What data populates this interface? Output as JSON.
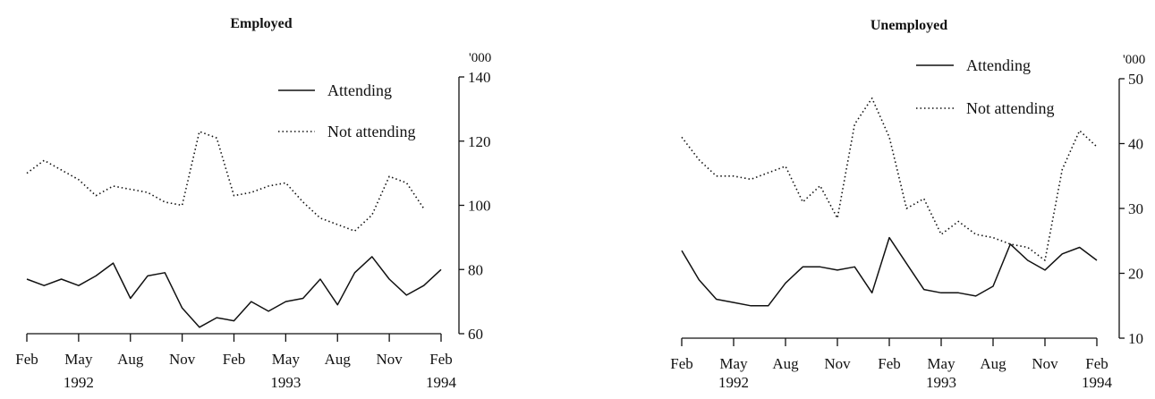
{
  "chart_data": [
    {
      "type": "line",
      "title": "Employed",
      "y_unit": "'000",
      "ylim": [
        60,
        140
      ],
      "y_ticks": [
        "60",
        "80",
        "100",
        "120",
        "140"
      ],
      "x_ticks": [
        "Feb",
        "May",
        "Aug",
        "Nov",
        "Feb",
        "May",
        "Aug",
        "Nov",
        "Feb"
      ],
      "year_labels": [
        "1992",
        "1993",
        "1994"
      ],
      "legend_position": "top-right",
      "legend": [
        "Attending",
        "Not attending"
      ],
      "x": [
        "Feb 1992",
        "Mar 1992",
        "Apr 1992",
        "May 1992",
        "Jun 1992",
        "Jul 1992",
        "Aug 1992",
        "Sep 1992",
        "Oct 1992",
        "Nov 1992",
        "Dec 1992",
        "Jan 1993",
        "Feb 1993",
        "Mar 1993",
        "Apr 1993",
        "May 1993",
        "Jun 1993",
        "Jul 1993",
        "Aug 1993",
        "Sep 1993",
        "Oct 1993",
        "Nov 1993",
        "Dec 1993",
        "Jan 1994",
        "Feb 1994"
      ],
      "series": [
        {
          "name": "Attending",
          "style": "solid",
          "values": [
            77,
            75,
            77,
            75,
            78,
            82,
            71,
            78,
            79,
            68,
            62,
            65,
            64,
            70,
            67,
            70,
            71,
            77,
            69,
            79,
            84,
            77,
            72,
            75,
            80
          ]
        },
        {
          "name": "Not attending",
          "style": "dotted",
          "values": [
            110,
            114,
            111,
            108,
            103,
            106,
            105,
            104,
            101,
            100,
            123,
            121,
            103,
            104,
            106,
            107,
            101,
            96,
            94,
            92,
            97,
            109,
            107,
            99,
            null
          ]
        }
      ]
    },
    {
      "type": "line",
      "title": "Unemployed",
      "y_unit": "'000",
      "ylim": [
        10,
        50
      ],
      "y_ticks": [
        "10",
        "20",
        "30",
        "40",
        "50"
      ],
      "x_ticks": [
        "Feb",
        "May",
        "Aug",
        "Nov",
        "Feb",
        "May",
        "Aug",
        "Nov",
        "Feb"
      ],
      "year_labels": [
        "1992",
        "1993",
        "1994"
      ],
      "legend_position": "top-right",
      "legend": [
        "Attending",
        "Not attending"
      ],
      "x": [
        "Feb 1992",
        "Mar 1992",
        "Apr 1992",
        "May 1992",
        "Jun 1992",
        "Jul 1992",
        "Aug 1992",
        "Sep 1992",
        "Oct 1992",
        "Nov 1992",
        "Dec 1992",
        "Jan 1993",
        "Feb 1993",
        "Mar 1993",
        "Apr 1993",
        "May 1993",
        "Jun 1993",
        "Jul 1993",
        "Aug 1993",
        "Sep 1993",
        "Oct 1993",
        "Nov 1993",
        "Dec 1993",
        "Jan 1994",
        "Feb 1994"
      ],
      "series": [
        {
          "name": "Attending",
          "style": "solid",
          "values": [
            23.5,
            19,
            16,
            15.5,
            15,
            15,
            18.5,
            21,
            21,
            20.5,
            21,
            17,
            25.5,
            21.5,
            17.5,
            17,
            17,
            16.5,
            18,
            24.5,
            22,
            20.5,
            23,
            24,
            22
          ]
        },
        {
          "name": "Not attending",
          "style": "dotted",
          "values": [
            41,
            37.5,
            35,
            35,
            34.5,
            35.5,
            36.5,
            31,
            33.5,
            28.5,
            43,
            47,
            41,
            30,
            31.5,
            26,
            28,
            26,
            25.5,
            24.5,
            24,
            22,
            36,
            42,
            39.5
          ]
        }
      ]
    }
  ]
}
